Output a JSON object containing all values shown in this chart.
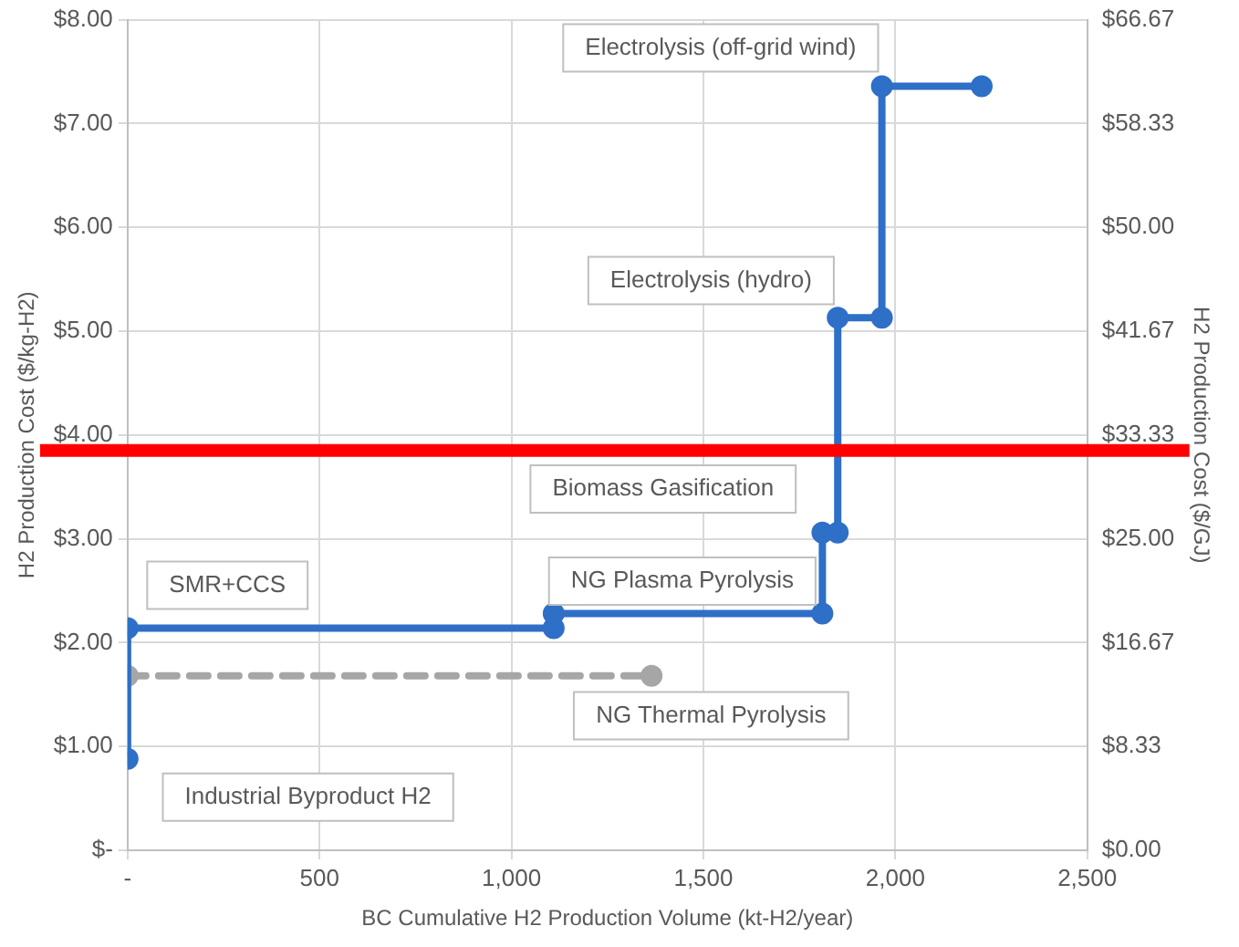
{
  "chart_data": {
    "type": "line",
    "xlabel": "BC Cumulative H2 Production Volume (kt-H2/year)",
    "ylabel": "H2 Production Cost ($/kg-H2)",
    "y2label": "H2 Production Cost ($/GJ)",
    "series": [
      {
        "color": "#2e6fc7",
        "x": [
          0,
          0,
          1110,
          1110,
          1810,
          1810,
          1850,
          1850,
          1965,
          1965,
          2225
        ],
        "values": [
          0.88,
          2.14,
          2.14,
          2.28,
          2.28,
          3.06,
          3.06,
          5.13,
          5.13,
          7.36,
          7.36
        ],
        "line_style": "solid"
      },
      {
        "color": "#a6a6a6",
        "x": [
          0,
          1365
        ],
        "values": [
          1.68,
          1.68
        ],
        "line_style": "dashed"
      }
    ],
    "xlim": [
      0,
      2500
    ],
    "xticks": [
      {
        "value": 0,
        "label": "-"
      },
      500,
      {
        "value": 1000,
        "label": "1,000"
      },
      {
        "value": 1500,
        "label": "1,500"
      },
      {
        "value": 2000,
        "label": "2,000"
      },
      {
        "value": 2500,
        "label": "2,500"
      }
    ],
    "ylim": [
      0,
      8
    ],
    "yticks": [
      {
        "value": 0,
        "label": "$-"
      },
      {
        "value": 1,
        "label": "$1.00"
      },
      {
        "value": 2,
        "label": "$2.00"
      },
      {
        "value": 3,
        "label": "$3.00"
      },
      {
        "value": 4,
        "label": "$4.00"
      },
      {
        "value": 5,
        "label": "$5.00"
      },
      {
        "value": 6,
        "label": "$6.00"
      },
      {
        "value": 7,
        "label": "$7.00"
      },
      {
        "value": 8,
        "label": "$8.00"
      }
    ],
    "y2lim": [
      0,
      66.67
    ],
    "y2ticks": [
      {
        "value": 0,
        "label": "$0.00"
      },
      {
        "value": 8.33,
        "label": "$8.33"
      },
      {
        "value": 16.67,
        "label": "$16.67"
      },
      {
        "value": 25,
        "label": "$25.00"
      },
      {
        "value": 33.33,
        "label": "$33.33"
      },
      {
        "value": 41.67,
        "label": "$41.67"
      },
      {
        "value": 50,
        "label": "$50.00"
      },
      {
        "value": 58.33,
        "label": "$58.33"
      },
      {
        "value": 66.67,
        "label": "$66.67"
      }
    ],
    "annotations": [
      "Electrolysis (off-grid wind)",
      "Electrolysis (hydro)",
      "Biomass Gasification",
      "NG Plasma Pyrolysis",
      "SMR+CCS",
      "NG Thermal Pyrolysis",
      "Industrial Byproduct H2"
    ],
    "ref_lines": [
      {
        "axis": "y",
        "value": 3.85,
        "color": "#ff0000"
      }
    ],
    "grid": true,
    "legend": false,
    "marker": "circle"
  }
}
